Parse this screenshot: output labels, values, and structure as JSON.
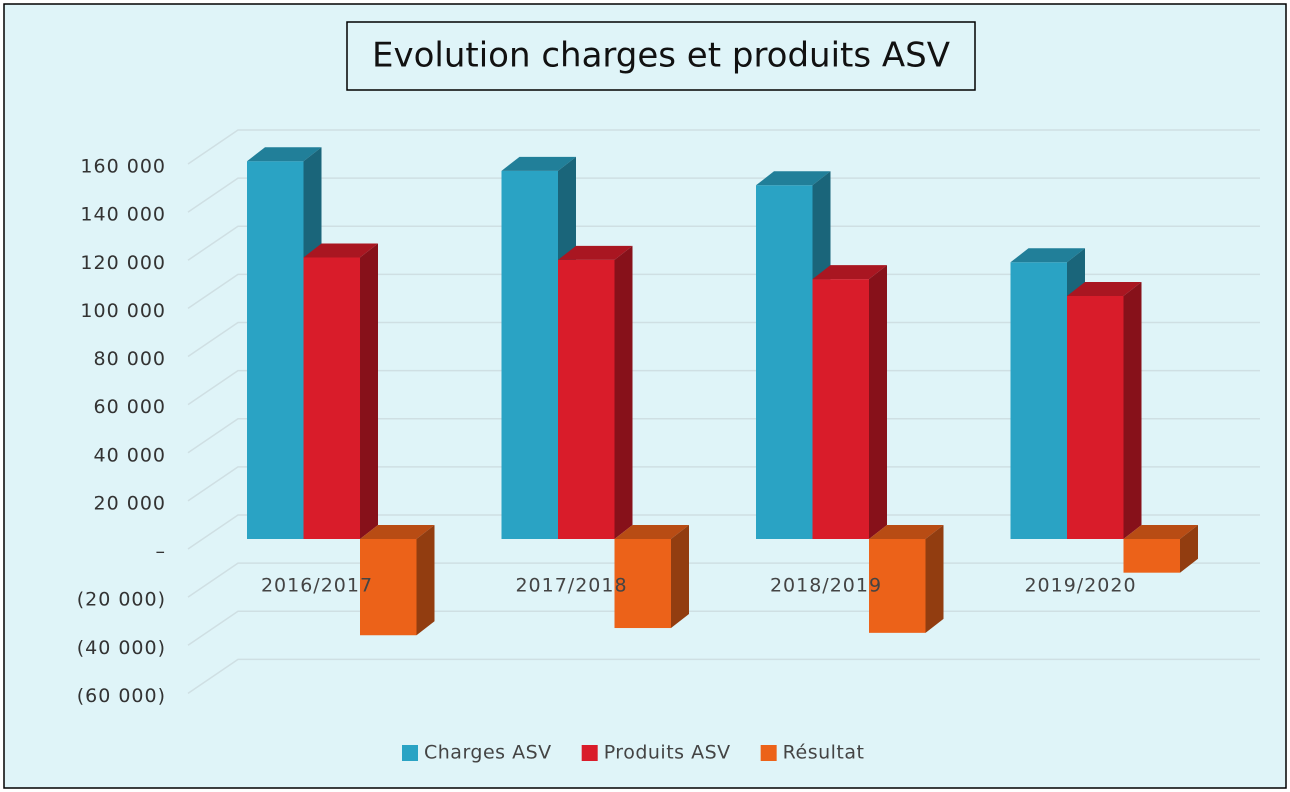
{
  "chart_data": {
    "type": "bar3d",
    "title": "Evolution charges et produits ASV",
    "categories": [
      "2016/2017",
      "2017/2018",
      "2018/2019",
      "2019/2020"
    ],
    "series": [
      {
        "name": "Charges ASV",
        "color": "#2aa3c4",
        "values": [
          157000,
          153000,
          147000,
          115000
        ]
      },
      {
        "name": "Produits ASV",
        "color": "#d91c2a",
        "values": [
          117000,
          116000,
          108000,
          101000
        ]
      },
      {
        "name": "Résultat",
        "color": "#ec6219",
        "values": [
          -40000,
          -37000,
          -39000,
          -14000
        ]
      }
    ],
    "ylim": [
      -60000,
      160000
    ],
    "yticks": [
      {
        "value": -60000,
        "label": "(60 000)"
      },
      {
        "value": -40000,
        "label": "(40 000)"
      },
      {
        "value": -20000,
        "label": "(20 000)"
      },
      {
        "value": 0,
        "label": "–"
      },
      {
        "value": 20000,
        "label": "20 000"
      },
      {
        "value": 40000,
        "label": "40 000"
      },
      {
        "value": 60000,
        "label": "60 000"
      },
      {
        "value": 80000,
        "label": "80 000"
      },
      {
        "value": 100000,
        "label": "100 000"
      },
      {
        "value": 120000,
        "label": "120 000"
      },
      {
        "value": 140000,
        "label": "140 000"
      },
      {
        "value": 160000,
        "label": "160 000"
      }
    ],
    "grid": true,
    "legend": "bottom"
  }
}
